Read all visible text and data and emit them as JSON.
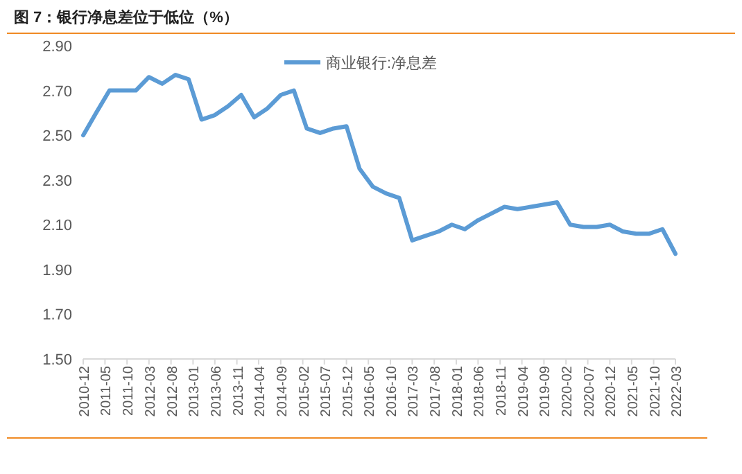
{
  "chart_data": {
    "type": "line",
    "title": "图 7：银行净息差位于低位（%）",
    "x": [
      "2010-12",
      "2011-03",
      "2011-06",
      "2011-09",
      "2011-12",
      "2012-03",
      "2012-06",
      "2012-09",
      "2012-12",
      "2013-03",
      "2013-06",
      "2013-09",
      "2013-12",
      "2014-03",
      "2014-06",
      "2014-09",
      "2014-12",
      "2015-03",
      "2015-06",
      "2015-09",
      "2015-12",
      "2016-03",
      "2016-06",
      "2016-09",
      "2016-12",
      "2017-03",
      "2017-06",
      "2017-09",
      "2017-12",
      "2018-03",
      "2018-06",
      "2018-09",
      "2018-12",
      "2019-03",
      "2019-06",
      "2019-09",
      "2019-12",
      "2020-03",
      "2020-06",
      "2020-09",
      "2020-12",
      "2021-03",
      "2021-06",
      "2021-09",
      "2021-12",
      "2022-03"
    ],
    "series": [
      {
        "name": "商业银行:净息差",
        "color": "#5b9bd5",
        "values": [
          2.5,
          2.6,
          2.7,
          2.7,
          2.7,
          2.76,
          2.73,
          2.77,
          2.75,
          2.57,
          2.59,
          2.63,
          2.68,
          2.58,
          2.62,
          2.68,
          2.7,
          2.53,
          2.51,
          2.53,
          2.54,
          2.35,
          2.27,
          2.24,
          2.22,
          2.03,
          2.05,
          2.07,
          2.1,
          2.08,
          2.12,
          2.15,
          2.18,
          2.17,
          2.18,
          2.19,
          2.2,
          2.1,
          2.09,
          2.09,
          2.1,
          2.07,
          2.06,
          2.06,
          2.08,
          1.97
        ]
      }
    ],
    "xlim": [
      "2010-12",
      "2022-03"
    ],
    "xticks": [
      "2010-12",
      "2011-05",
      "2011-10",
      "2012-03",
      "2012-08",
      "2013-01",
      "2013-06",
      "2013-11",
      "2014-04",
      "2014-09",
      "2015-02",
      "2015-07",
      "2015-12",
      "2016-05",
      "2016-10",
      "2017-03",
      "2017-08",
      "2018-01",
      "2018-06",
      "2018-11",
      "2019-04",
      "2019-09",
      "2020-02",
      "2020-07",
      "2020-12",
      "2021-05",
      "2021-10",
      "2022-03"
    ],
    "ylim": [
      1.5,
      2.9
    ],
    "yticks": [
      {
        "value": 1.5,
        "label": "1.50"
      },
      {
        "value": 1.7,
        "label": "1.70"
      },
      {
        "value": 1.9,
        "label": "1.90"
      },
      {
        "value": 2.1,
        "label": "2.10"
      },
      {
        "value": 2.3,
        "label": "2.30"
      },
      {
        "value": 2.5,
        "label": "2.50"
      },
      {
        "value": 2.7,
        "label": "2.70"
      },
      {
        "value": 2.9,
        "label": "2.90"
      }
    ],
    "legend": "top",
    "grid": false,
    "marker": "none",
    "line_style": "solid"
  }
}
